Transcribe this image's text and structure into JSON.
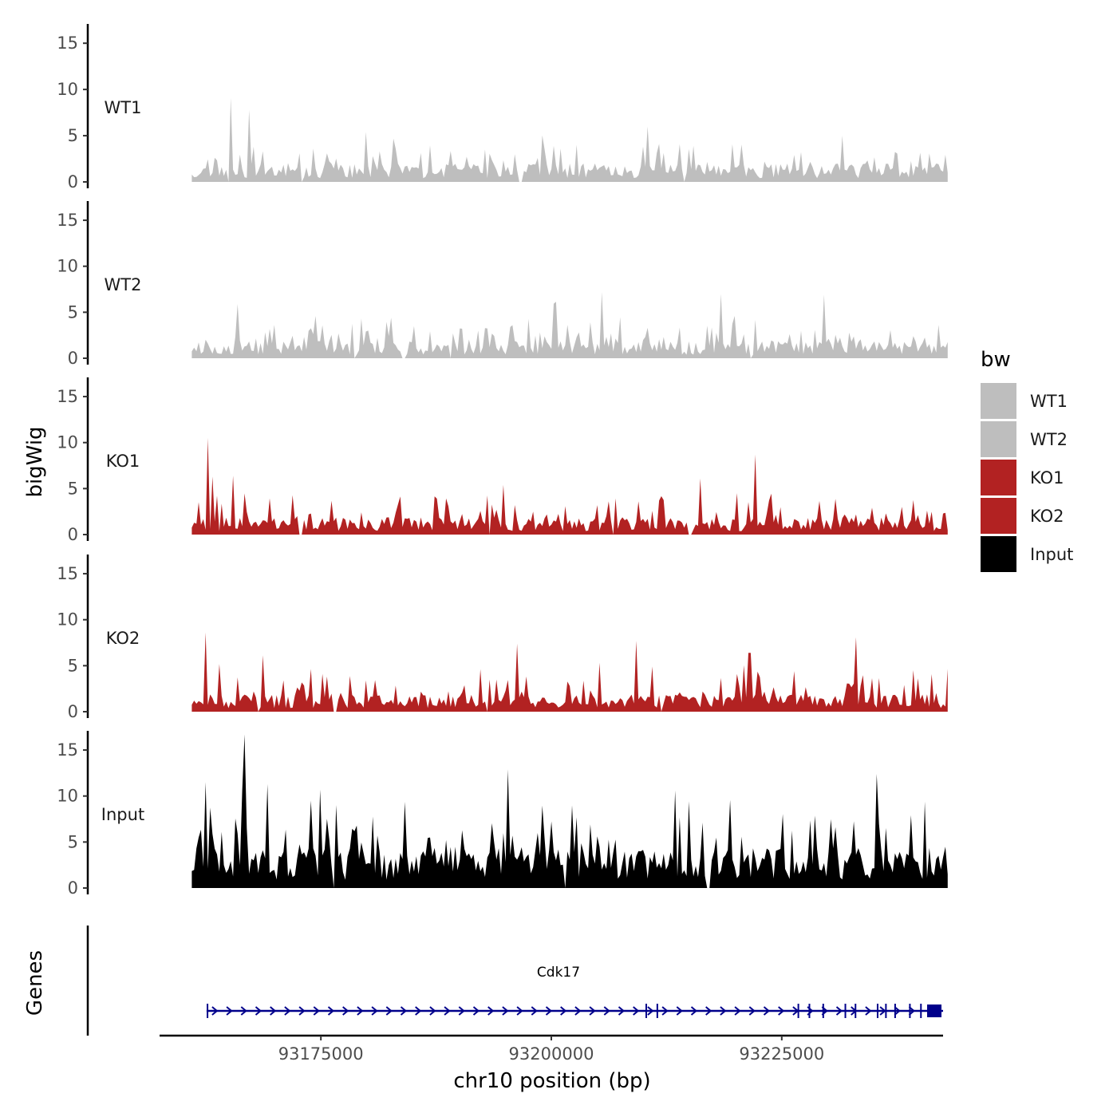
{
  "chart_data": {
    "type": "area",
    "title": "",
    "ylabel": "bigWig",
    "genes_label": "Genes",
    "xlabel": "chr10 position (bp)",
    "xlim": [
      93157500,
      93242500
    ],
    "region": [
      93161000,
      93243000
    ],
    "ylim": [
      0,
      17
    ],
    "yticks": [
      "0",
      "5",
      "10",
      "15"
    ],
    "yticks_values": [
      0,
      5,
      10,
      15
    ],
    "xticks": [
      "93175000",
      "93200000",
      "93225000"
    ],
    "xticks_values": [
      93175000,
      93200000,
      93225000
    ],
    "legend": {
      "title": "bw",
      "position": "right",
      "entries": [
        {
          "label": "WT1",
          "color": "#bebebe"
        },
        {
          "label": "WT2",
          "color": "#bebebe"
        },
        {
          "label": "KO1",
          "color": "#b22222"
        },
        {
          "label": "KO2",
          "color": "#b22222"
        },
        {
          "label": "Input",
          "color": "#000000"
        }
      ]
    },
    "series": [
      {
        "name": "WT1",
        "color": "#bebebe",
        "seed": 11,
        "base": 1.6,
        "spike": 3.2,
        "peaks": [
          [
            93165200,
            9.1
          ],
          [
            93167200,
            7.8
          ],
          [
            93179800,
            5.4
          ],
          [
            93210400,
            6.0
          ],
          [
            93231600,
            5.0
          ]
        ],
        "gaps": [
          [
            93164900,
            93165100
          ],
          [
            93172800,
            93173100
          ],
          [
            93196500,
            93196800
          ],
          [
            93214300,
            93214600
          ]
        ]
      },
      {
        "name": "WT2",
        "color": "#bebebe",
        "seed": 23,
        "base": 1.5,
        "spike": 3.0,
        "peaks": [
          [
            93165900,
            5.9
          ],
          [
            93174500,
            4.6
          ],
          [
            93205500,
            7.2
          ],
          [
            93218500,
            7.0
          ],
          [
            93229500,
            6.9
          ]
        ],
        "gaps": [
          [
            93178500,
            93178800
          ],
          [
            93183800,
            93184200
          ],
          [
            93189000,
            93189300
          ],
          [
            93221400,
            93221700
          ]
        ]
      },
      {
        "name": "KO1",
        "color": "#b22222",
        "seed": 37,
        "base": 1.5,
        "spike": 3.0,
        "peaks": [
          [
            93162700,
            10.5
          ],
          [
            93165500,
            6.4
          ],
          [
            93216200,
            6.1
          ],
          [
            93222100,
            8.7
          ]
        ],
        "gaps": [
          [
            93172600,
            93173100
          ],
          [
            93193200,
            93193500
          ],
          [
            93206500,
            93206800
          ],
          [
            93214700,
            93215300
          ]
        ]
      },
      {
        "name": "KO2",
        "color": "#b22222",
        "seed": 51,
        "base": 1.5,
        "spike": 3.3,
        "peaks": [
          [
            93162500,
            8.6
          ],
          [
            93196300,
            7.4
          ],
          [
            93209300,
            7.7
          ],
          [
            93221500,
            6.4
          ],
          [
            93233100,
            8.1
          ]
        ],
        "gaps": [
          [
            93168100,
            93168400
          ],
          [
            93176400,
            93176800
          ],
          [
            93193000,
            93193300
          ],
          [
            93211700,
            93212000
          ]
        ]
      },
      {
        "name": "Input",
        "color": "#000000",
        "seed": 71,
        "base": 3.6,
        "spike": 6.2,
        "peaks": [
          [
            93166800,
            16.7
          ],
          [
            93162600,
            11.5
          ],
          [
            93169300,
            11.3
          ],
          [
            93195300,
            12.9
          ],
          [
            93235200,
            12.4
          ],
          [
            93175000,
            10.7
          ]
        ],
        "gaps": [
          [
            93176200,
            93176500
          ],
          [
            93201500,
            93201700
          ],
          [
            93216800,
            93217200
          ]
        ]
      }
    ],
    "gene": {
      "name": "Cdk17",
      "start": 93162600,
      "end": 93242500,
      "strand": "+",
      "color": "#00008b",
      "exons": [
        93162700,
        93210300,
        93211500,
        93226800,
        93228000,
        93229500,
        93231900,
        93233000,
        93235400,
        93236300,
        93237300,
        93238900,
        93240100
      ]
    }
  }
}
